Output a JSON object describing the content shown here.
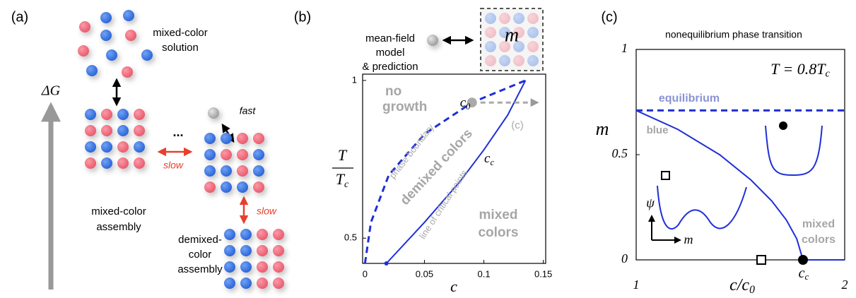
{
  "panel_a": {
    "label": "(a)",
    "solution": [
      "mixed-color",
      "solution"
    ],
    "delta_g": "ΔG",
    "ellipsis": "...",
    "slow_1": "slow",
    "fast": "fast",
    "mixed_assembly": [
      "mixed-color",
      "assembly"
    ],
    "slow_2": "slow",
    "demixed_assembly": [
      "demixed-",
      "color",
      "assembly"
    ]
  },
  "panel_b_header": {
    "model": [
      "mean-field",
      "model",
      "& prediction"
    ],
    "m": "m"
  },
  "chart_data": [
    {
      "type": "line",
      "panel": "(b)",
      "x_label": "c",
      "y_label": {
        "numerator": "T",
        "denominator": "T",
        "denominator_sub": "c"
      },
      "xlim": [
        -0.002,
        0.152
      ],
      "xticks": [
        0,
        0.05,
        0.1,
        0.15
      ],
      "ylim": [
        0.42,
        1.02
      ],
      "yticks": [
        0.5,
        1
      ],
      "series": [
        {
          "name": "phase boundary",
          "color": "#1f2fd6",
          "dashed": true,
          "x": [
            0,
            0.005,
            0.02,
            0.05,
            0.09,
            0.135
          ],
          "values": [
            0.42,
            0.55,
            0.7,
            0.83,
            0.93,
            1.0
          ]
        },
        {
          "name": "line of critical points",
          "color": "#1f2fd6",
          "dashed": false,
          "x": [
            0.018,
            0.05,
            0.08,
            0.1,
            0.12,
            0.135
          ],
          "values": [
            0.42,
            0.55,
            0.68,
            0.78,
            0.89,
            1.0
          ]
        }
      ],
      "points": [
        {
          "x": 0.018,
          "y": 0.42,
          "color": "#1f2fd6"
        },
        {
          "x": 0.09,
          "y": 0.93,
          "color": "#aaaaaa"
        }
      ],
      "arrow": {
        "x": [
          0.09,
          0.145
        ],
        "y": 0.93,
        "label": "(c)"
      },
      "c0": {
        "main": "c",
        "sub": "0"
      },
      "cc": {
        "main": "c",
        "sub": "c"
      },
      "regions": {
        "no_growth": [
          "no",
          "growth"
        ],
        "demixed": "demixed colors",
        "mixed": [
          "mixed",
          "colors"
        ]
      }
    },
    {
      "type": "line",
      "panel": "(c)",
      "title": "nonequilibrium phase transition",
      "x_label": {
        "main": "c/c",
        "sub": "0"
      },
      "y_label": "m",
      "xlim": [
        1,
        2
      ],
      "xticks": [
        1,
        2
      ],
      "ylim": [
        0,
        1
      ],
      "yticks": [
        0,
        0.5,
        1
      ],
      "series": [
        {
          "name": "equilibrium",
          "color": "#1f2fd6",
          "dashed": true,
          "x": [
            1,
            2
          ],
          "values": [
            0.71,
            0.71
          ]
        },
        {
          "color": "#1f2fd6",
          "dashed": false,
          "x": [
            1,
            1.2,
            1.4,
            1.55,
            1.65,
            1.72,
            1.77,
            1.8,
            2
          ],
          "values": [
            0.71,
            0.62,
            0.5,
            0.38,
            0.28,
            0.19,
            0.1,
            0,
            0
          ]
        }
      ],
      "markers": [
        {
          "x": 1.6,
          "y": 0,
          "shape": "square"
        },
        {
          "x": 1.8,
          "y": 0,
          "shape": "circle"
        }
      ],
      "cc": {
        "main": "c",
        "sub": "c"
      },
      "temperature": {
        "main": "T = 0.8T",
        "sub": "c"
      },
      "regions": {
        "blue": "blue",
        "mixed": [
          "mixed",
          "colors"
        ]
      },
      "inset": {
        "psi": "ψ",
        "m": "m"
      }
    }
  ]
}
